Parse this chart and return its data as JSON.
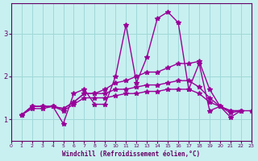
{
  "xlabel": "Windchill (Refroidissement éolien,°C)",
  "bg_color": "#c8f0f0",
  "grid_color": "#a0d8d8",
  "line_color": "#990099",
  "text_color": "#660066",
  "xlim": [
    0,
    23
  ],
  "ylim": [
    0.5,
    3.7
  ],
  "yticks": [
    1,
    2,
    3
  ],
  "xticks": [
    0,
    1,
    2,
    3,
    4,
    5,
    6,
    7,
    8,
    9,
    10,
    11,
    12,
    13,
    14,
    15,
    16,
    17,
    18,
    19,
    20,
    21,
    22,
    23
  ],
  "series_x": [
    [
      1,
      2,
      3,
      4,
      5,
      6,
      7,
      8,
      9,
      10,
      11,
      12,
      13,
      14,
      15,
      16,
      17,
      18,
      19,
      20,
      21,
      22,
      23
    ],
    [
      1,
      2,
      3,
      4,
      5,
      6,
      7,
      8,
      9,
      10,
      11,
      12,
      13,
      14,
      15,
      16,
      17,
      18,
      19,
      20,
      21,
      22
    ],
    [
      1,
      2,
      3,
      4,
      5,
      6,
      7,
      8,
      9,
      10,
      11,
      12,
      13,
      14,
      15,
      16,
      17,
      18,
      19,
      20,
      21,
      22
    ],
    [
      1,
      2,
      3,
      4,
      5,
      6,
      7,
      8,
      9,
      10,
      11,
      12,
      13,
      14,
      15,
      16,
      17,
      18,
      19,
      20,
      21,
      22
    ]
  ],
  "series_y": [
    [
      1.1,
      1.3,
      1.3,
      1.3,
      0.9,
      1.6,
      1.7,
      1.35,
      1.35,
      2.0,
      3.2,
      1.85,
      2.45,
      3.35,
      3.5,
      3.25,
      1.7,
      2.3,
      1.2,
      1.3,
      1.05,
      1.2,
      1.2
    ],
    [
      1.1,
      1.3,
      1.3,
      1.3,
      1.25,
      1.4,
      1.6,
      1.6,
      1.7,
      1.85,
      1.9,
      2.0,
      2.1,
      2.1,
      2.2,
      2.3,
      2.3,
      2.35,
      1.7,
      1.3,
      1.2,
      1.2
    ],
    [
      1.1,
      1.3,
      1.3,
      1.3,
      1.25,
      1.4,
      1.6,
      1.6,
      1.6,
      1.7,
      1.7,
      1.75,
      1.8,
      1.8,
      1.85,
      1.9,
      1.9,
      1.75,
      1.5,
      1.3,
      1.2,
      1.2
    ],
    [
      1.1,
      1.25,
      1.25,
      1.3,
      1.2,
      1.35,
      1.5,
      1.5,
      1.5,
      1.55,
      1.6,
      1.6,
      1.65,
      1.65,
      1.7,
      1.7,
      1.7,
      1.6,
      1.4,
      1.3,
      1.15,
      1.2
    ]
  ],
  "marker": "*",
  "markersize": 4,
  "linewidth": 1.0
}
